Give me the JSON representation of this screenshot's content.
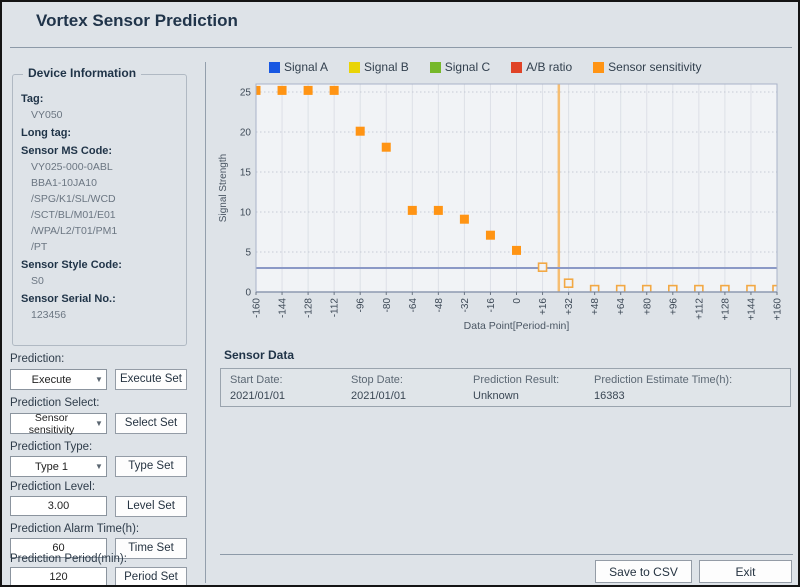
{
  "window": {
    "title": "Vortex Sensor Prediction"
  },
  "device_info": {
    "title": "Device Information",
    "tag_label": "Tag:",
    "tag_value": "VY050",
    "long_tag_label": "Long tag:",
    "long_tag_value": "",
    "ms_code_label": "Sensor MS Code:",
    "ms_code_lines": [
      "VY025-000-0ABL",
      "BBA1-10JA10",
      "/SPG/K1/SL/WCD",
      "/SCT/BL/M01/E01",
      "/WPA/L2/T01/PM1",
      "/PT"
    ],
    "style_code_label": "Sensor Style Code:",
    "style_code_value": "S0",
    "serial_label": "Sensor Serial No.:",
    "serial_value": "123456"
  },
  "controls": {
    "prediction_label": "Prediction:",
    "prediction_value": "Execute",
    "execute_set": "Execute Set",
    "select_label": "Prediction Select:",
    "select_value": "Sensor sensitivity",
    "select_set": "Select Set",
    "type_label": "Prediction Type:",
    "type_value": "Type 1",
    "type_set": "Type Set",
    "level_label": "Prediction Level:",
    "level_value": "3.00",
    "level_set": "Level Set",
    "alarm_label": "Prediction Alarm Time(h):",
    "alarm_value": "60",
    "time_set": "Time Set",
    "period_label": "Prediction Period(min):",
    "period_value": "120",
    "period_set": "Period Set"
  },
  "chart_data": {
    "type": "scatter",
    "title": "",
    "xlabel": "Data Point[Period-min]",
    "ylabel": "Signal Strength",
    "ylim": [
      0,
      26
    ],
    "yticks": [
      0,
      5,
      10,
      15,
      20,
      25
    ],
    "grid": true,
    "legend_position": "top",
    "categories": [
      "-160",
      "-144",
      "-128",
      "-112",
      "-96",
      "-80",
      "-64",
      "-48",
      "-32",
      "-16",
      "0",
      "+16",
      "+32",
      "+48",
      "+64",
      "+80",
      "+96",
      "+112",
      "+128",
      "+144",
      "+160"
    ],
    "series": [
      {
        "name": "Signal A",
        "color": "#1757e2",
        "values": []
      },
      {
        "name": "Signal B",
        "color": "#e9d406",
        "values": []
      },
      {
        "name": "Signal C",
        "color": "#76b82a",
        "values": []
      },
      {
        "name": "A/B ratio",
        "color": "#e04327",
        "values": []
      },
      {
        "name": "Sensor sensitivity",
        "color": "#ff9414",
        "values": [
          25.2,
          25.2,
          25.2,
          25.2,
          20.1,
          18.1,
          10.2,
          10.2,
          9.1,
          7.1,
          5.2,
          3.1,
          1.1,
          0.3,
          0.3,
          0.3,
          0.3,
          0.3,
          0.3,
          0.3,
          0.3
        ],
        "open_marker_from_index": 11
      }
    ],
    "reference_lines": {
      "hline_y": 3.0,
      "hline_color": "#8b99c6",
      "vline_x": 26,
      "vline_color": "#f6be72"
    }
  },
  "sensor_data": {
    "title": "Sensor Data",
    "columns": [
      {
        "label": "Start Date:",
        "value": "2021/01/01"
      },
      {
        "label": "Stop Date:",
        "value": "2021/01/01"
      },
      {
        "label": "Prediction Result:",
        "value": "Unknown"
      },
      {
        "label": "Prediction Estimate Time(h):",
        "value": "16383"
      }
    ]
  },
  "footer": {
    "save_csv": "Save to CSV",
    "exit": "Exit"
  }
}
